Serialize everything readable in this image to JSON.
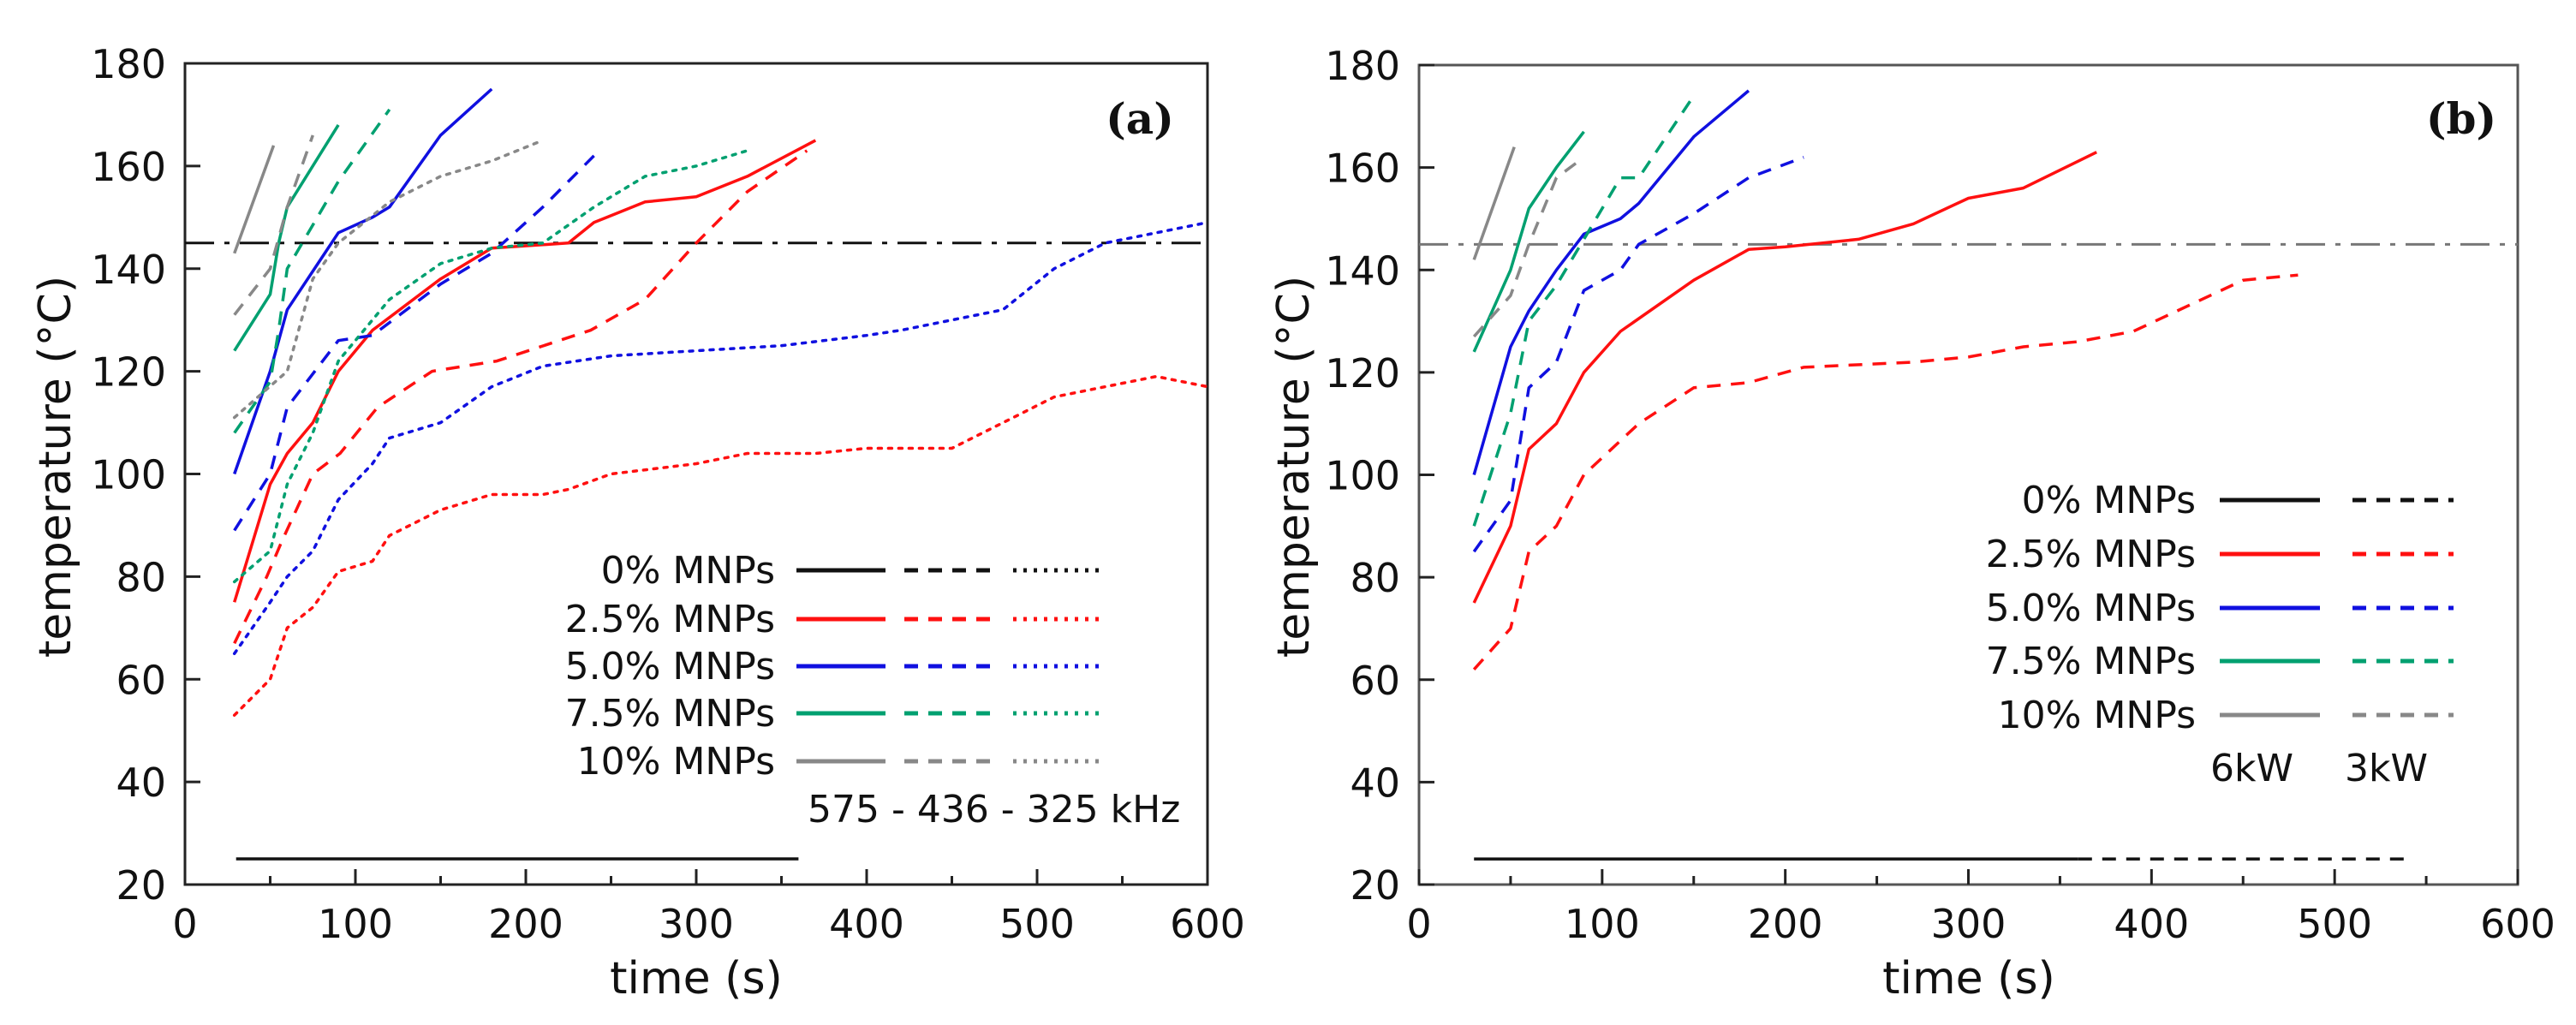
{
  "chart_data": [
    {
      "type": "line",
      "panel_label": "(a)",
      "xlabel": "time (s)",
      "ylabel": "temperature (°C)",
      "xlim": [
        0,
        600
      ],
      "ylim": [
        20,
        180
      ],
      "xticks": [
        0,
        100,
        200,
        300,
        400,
        500,
        600
      ],
      "yticks": [
        20,
        40,
        60,
        80,
        100,
        120,
        140,
        160,
        180
      ],
      "grid": false,
      "reference_line": {
        "y": 145,
        "style": "dashdot",
        "color": "#111111"
      },
      "legend": {
        "placement": "bottom-right",
        "entries": [
          "0% MNPs",
          "2.5% MNPs",
          "5.0% MNPs",
          "7.5% MNPs",
          "10% MNPs"
        ],
        "styles": [
          "solid",
          "dashed",
          "dotted"
        ],
        "footer": "575 -  436 -  325 kHz"
      },
      "series": [
        {
          "name": "0% MNPs 575 kHz",
          "color": "#111111",
          "style": "solid",
          "x": [
            30,
            360
          ],
          "y": [
            25,
            25
          ]
        },
        {
          "name": "2.5% MNPs 575 kHz",
          "color": "#ff1010",
          "style": "solid",
          "x": [
            29,
            50,
            60,
            75,
            90,
            110,
            150,
            180,
            225,
            240,
            270,
            300,
            330,
            370
          ],
          "y": [
            75,
            98,
            104,
            110,
            120,
            128,
            138,
            144,
            145,
            149,
            153,
            154,
            158,
            165
          ]
        },
        {
          "name": "2.5% MNPs 436 kHz",
          "color": "#ff1010",
          "style": "dashed",
          "x": [
            29,
            48,
            57,
            75,
            91,
            113,
            145,
            183,
            238,
            270,
            300,
            330,
            365
          ],
          "y": [
            67,
            80,
            87,
            100,
            104,
            113,
            120,
            122,
            128,
            134,
            145,
            155,
            163
          ]
        },
        {
          "name": "2.5% MNPs 325 kHz",
          "color": "#ff1010",
          "style": "dotted",
          "x": [
            29,
            50,
            60,
            75,
            90,
            110,
            120,
            150,
            180,
            210,
            225,
            250,
            300,
            330,
            370,
            400,
            450,
            480,
            510,
            570,
            600
          ],
          "y": [
            53,
            60,
            70,
            74,
            81,
            83,
            88,
            93,
            96,
            96,
            97,
            100,
            102,
            104,
            104,
            105,
            105,
            110,
            115,
            119,
            117
          ]
        },
        {
          "name": "5.0% MNPs 575 kHz",
          "color": "#1010e0",
          "style": "solid",
          "x": [
            29,
            50,
            60,
            90,
            110,
            120,
            150,
            180
          ],
          "y": [
            100,
            120,
            132,
            147,
            150,
            152,
            166,
            175
          ]
        },
        {
          "name": "5.0% MNPs 436 kHz",
          "color": "#1010e0",
          "style": "dashed",
          "x": [
            29,
            50,
            60,
            90,
            110,
            150,
            180,
            210,
            240
          ],
          "y": [
            89,
            100,
            113,
            126,
            127,
            137,
            143,
            152,
            162
          ]
        },
        {
          "name": "5.0% MNPs 325 kHz",
          "color": "#1010e0",
          "style": "dotted",
          "x": [
            29,
            50,
            60,
            75,
            90,
            110,
            120,
            150,
            180,
            210,
            250,
            300,
            350,
            400,
            420,
            480,
            510,
            540,
            600
          ],
          "y": [
            65,
            75,
            80,
            85,
            95,
            102,
            107,
            110,
            117,
            121,
            123,
            124,
            125,
            127,
            128,
            132,
            140,
            145,
            149
          ]
        },
        {
          "name": "7.5% MNPs 575 kHz",
          "color": "#00a070",
          "style": "solid",
          "x": [
            29,
            50,
            55,
            60,
            90
          ],
          "y": [
            124,
            135,
            145,
            152,
            168
          ]
        },
        {
          "name": "7.5% MNPs 436 kHz",
          "color": "#00a070",
          "style": "dashed",
          "x": [
            29,
            50,
            55,
            60,
            90,
            120
          ],
          "y": [
            108,
            118,
            128,
            140,
            157,
            171
          ]
        },
        {
          "name": "7.5% MNPs 325 kHz",
          "color": "#00a070",
          "style": "dotted",
          "x": [
            29,
            50,
            60,
            75,
            90,
            120,
            150,
            180,
            210,
            240,
            270,
            300,
            330
          ],
          "y": [
            79,
            85,
            98,
            108,
            122,
            134,
            141,
            144,
            145,
            152,
            158,
            160,
            163
          ]
        },
        {
          "name": "10% MNPs 575 kHz",
          "color": "#888888",
          "style": "solid",
          "x": [
            29,
            52
          ],
          "y": [
            143,
            164
          ]
        },
        {
          "name": "10% MNPs 436 kHz",
          "color": "#888888",
          "style": "dashed",
          "x": [
            29,
            50,
            60,
            75
          ],
          "y": [
            131,
            140,
            152,
            166
          ]
        },
        {
          "name": "10% MNPs 325 kHz",
          "color": "#888888",
          "style": "dotted",
          "x": [
            29,
            60,
            75,
            90,
            120,
            150,
            180,
            210
          ],
          "y": [
            111,
            120,
            138,
            145,
            153,
            158,
            161,
            165
          ]
        }
      ]
    },
    {
      "type": "line",
      "panel_label": "(b)",
      "xlabel": "time (s)",
      "ylabel": "temperature (°C)",
      "xlim": [
        0,
        600
      ],
      "ylim": [
        20,
        180
      ],
      "xticks": [
        0,
        100,
        200,
        300,
        400,
        500,
        600
      ],
      "yticks": [
        20,
        40,
        60,
        80,
        100,
        120,
        140,
        160,
        180
      ],
      "grid": false,
      "reference_line": {
        "y": 145,
        "style": "dashdot",
        "color": "#777777"
      },
      "legend": {
        "placement": "bottom-right",
        "entries": [
          "0% MNPs",
          "2.5% MNPs",
          "5.0% MNPs",
          "7.5% MNPs",
          "10% MNPs"
        ],
        "styles": [
          "solid",
          "dashed"
        ],
        "column_labels": [
          "6kW",
          "3kW"
        ]
      },
      "series": [
        {
          "name": "0% MNPs 6kW",
          "color": "#111111",
          "style": "solid",
          "x": [
            30,
            360
          ],
          "y": [
            25,
            25
          ]
        },
        {
          "name": "0% MNPs 3kW",
          "color": "#111111",
          "style": "dashed",
          "x": [
            360,
            540
          ],
          "y": [
            25,
            25
          ]
        },
        {
          "name": "2.5% MNPs 6kW",
          "color": "#ff1010",
          "style": "solid",
          "x": [
            30,
            50,
            60,
            75,
            90,
            110,
            150,
            180,
            200,
            240,
            270,
            300,
            330,
            370
          ],
          "y": [
            75,
            90,
            105,
            110,
            120,
            128,
            138,
            144,
            144.5,
            146,
            149,
            154,
            156,
            163
          ]
        },
        {
          "name": "2.5% MNPs 3kW",
          "color": "#ff1010",
          "style": "dashed",
          "x": [
            30,
            50,
            60,
            75,
            90,
            120,
            150,
            180,
            210,
            270,
            300,
            330,
            360,
            390,
            420,
            450,
            480
          ],
          "y": [
            62,
            70,
            85,
            90,
            100,
            110,
            117,
            118,
            121,
            122,
            123,
            125,
            126,
            128,
            133,
            138,
            139
          ]
        },
        {
          "name": "5.0% MNPs 6kW",
          "color": "#1010e0",
          "style": "solid",
          "x": [
            30,
            50,
            60,
            75,
            90,
            110,
            120,
            150,
            180
          ],
          "y": [
            100,
            125,
            132,
            140,
            147,
            150,
            153,
            166,
            175
          ]
        },
        {
          "name": "5.0% MNPs 3kW",
          "color": "#1010e0",
          "style": "dashed",
          "x": [
            30,
            50,
            60,
            75,
            90,
            110,
            120,
            150,
            180,
            210
          ],
          "y": [
            85,
            95,
            117,
            122,
            136,
            140,
            145,
            151,
            158,
            162
          ]
        },
        {
          "name": "7.5% MNPs 6kW",
          "color": "#00a070",
          "style": "solid",
          "x": [
            30,
            50,
            60,
            75,
            90
          ],
          "y": [
            124,
            140,
            152,
            160,
            167
          ]
        },
        {
          "name": "7.5% MNPs 3kW",
          "color": "#00a070",
          "style": "dashed",
          "x": [
            30,
            50,
            60,
            75,
            90,
            110,
            120,
            150
          ],
          "y": [
            90,
            112,
            130,
            137,
            146,
            158,
            158,
            174
          ]
        },
        {
          "name": "10% MNPs 6kW",
          "color": "#888888",
          "style": "solid",
          "x": [
            30,
            52
          ],
          "y": [
            142,
            164
          ]
        },
        {
          "name": "10% MNPs 3kW",
          "color": "#888888",
          "style": "dashed",
          "x": [
            30,
            50,
            60,
            75,
            90
          ],
          "y": [
            127,
            135,
            145,
            158,
            162
          ]
        }
      ]
    }
  ]
}
